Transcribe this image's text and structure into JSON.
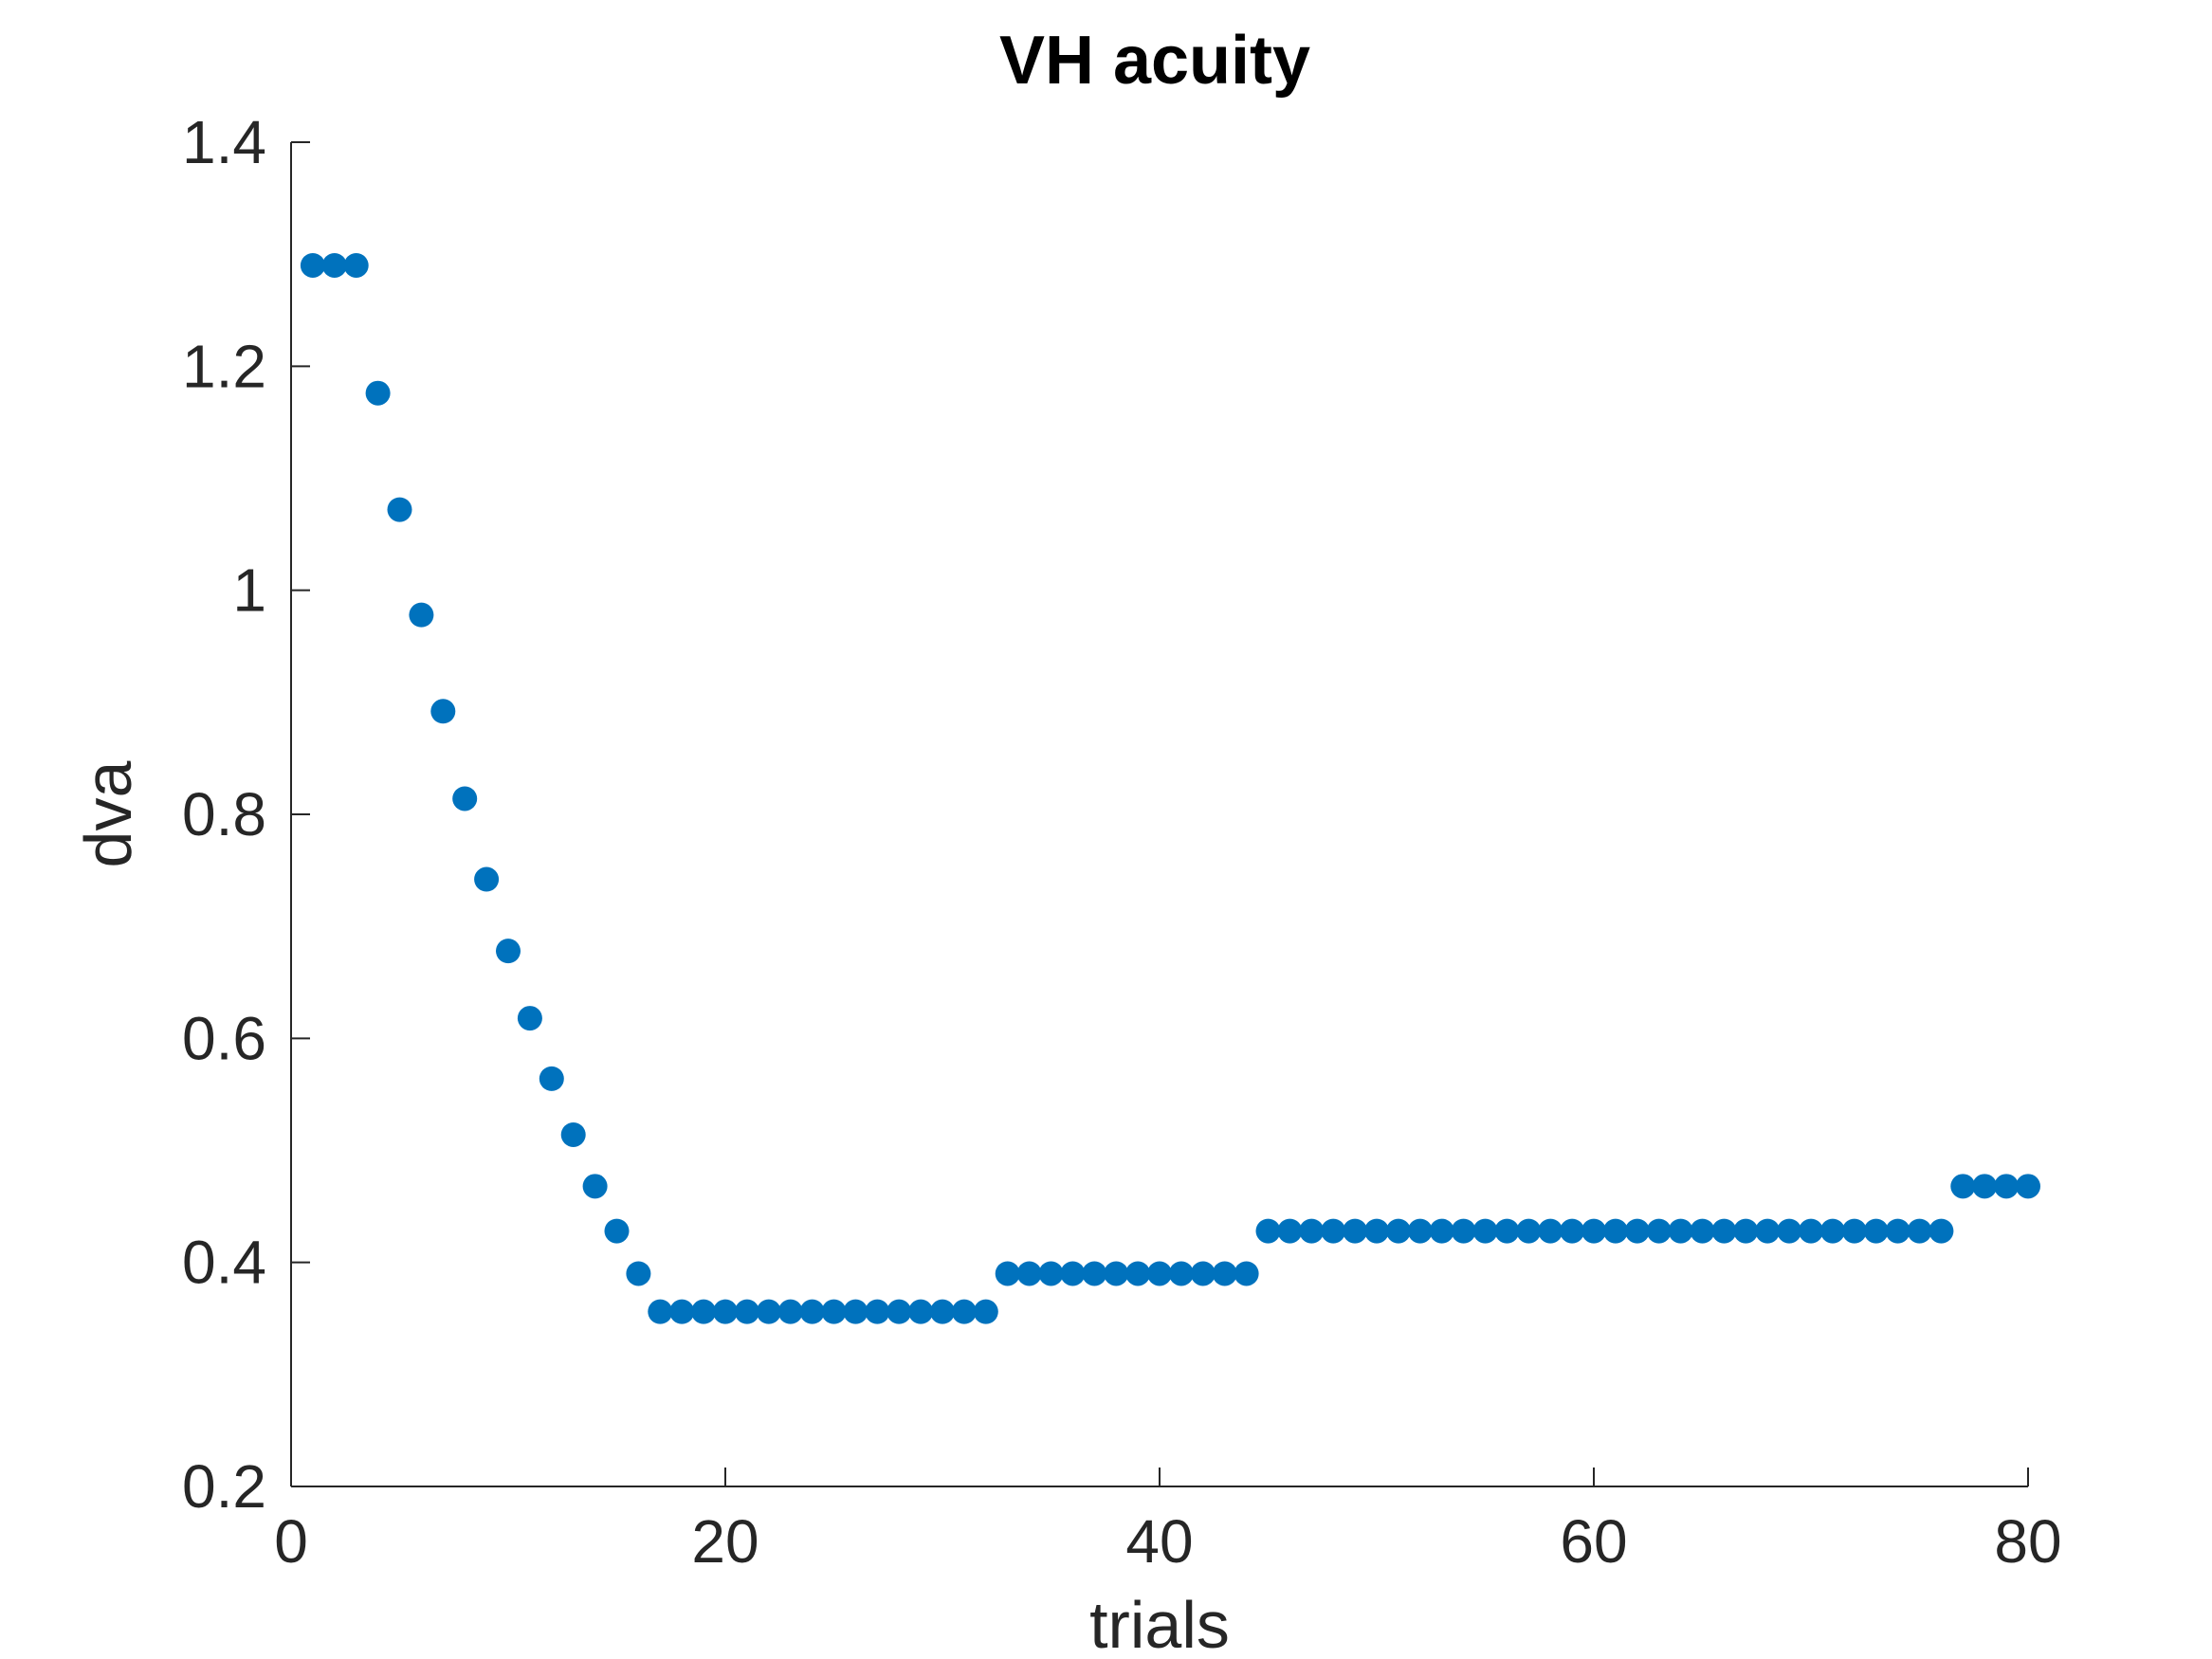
{
  "chart_data": {
    "type": "scatter",
    "title": "VH acuity",
    "xlabel": "trials",
    "ylabel": "dva",
    "xlim": [
      0,
      80
    ],
    "ylim": [
      0.2,
      1.4
    ],
    "xticks": [
      0,
      20,
      40,
      60,
      80
    ],
    "xtick_labels": [
      "0",
      "20",
      "40",
      "60",
      "80"
    ],
    "yticks": [
      0.2,
      0.4,
      0.6,
      0.8,
      1.0,
      1.2,
      1.4
    ],
    "ytick_labels": [
      "0.2",
      "0.4",
      "0.6",
      "0.8",
      "1",
      "1.2",
      "1.4"
    ],
    "grid": false,
    "marker_color": "#0072BD",
    "series": [
      {
        "x": [
          1,
          2,
          3,
          4,
          5,
          6,
          7,
          8,
          9,
          10,
          11,
          12,
          13,
          14,
          15,
          16,
          17,
          18,
          19,
          20,
          21,
          22,
          23,
          24,
          25,
          26,
          27,
          28,
          29,
          30,
          31,
          32,
          33,
          34,
          35,
          36,
          37,
          38,
          39,
          40,
          41,
          42,
          43,
          44,
          45,
          46,
          47,
          48,
          49,
          50,
          51,
          52,
          53,
          54,
          55,
          56,
          57,
          58,
          59,
          60,
          61,
          62,
          63,
          64,
          65,
          66,
          67,
          68,
          69,
          70,
          71,
          72,
          73,
          74,
          75,
          76,
          77,
          78,
          79,
          80
        ],
        "y": [
          1.29,
          1.29,
          1.29,
          1.176,
          1.072,
          0.978,
          0.892,
          0.814,
          0.742,
          0.678,
          0.618,
          0.564,
          0.514,
          0.468,
          0.428,
          0.39,
          0.356,
          0.356,
          0.356,
          0.356,
          0.356,
          0.356,
          0.356,
          0.356,
          0.356,
          0.356,
          0.356,
          0.356,
          0.356,
          0.356,
          0.356,
          0.356,
          0.39,
          0.39,
          0.39,
          0.39,
          0.39,
          0.39,
          0.39,
          0.39,
          0.39,
          0.39,
          0.39,
          0.39,
          0.428,
          0.428,
          0.428,
          0.428,
          0.428,
          0.428,
          0.428,
          0.428,
          0.428,
          0.428,
          0.428,
          0.428,
          0.428,
          0.428,
          0.428,
          0.428,
          0.428,
          0.428,
          0.428,
          0.428,
          0.428,
          0.428,
          0.428,
          0.428,
          0.428,
          0.428,
          0.428,
          0.428,
          0.428,
          0.428,
          0.428,
          0.428,
          0.468,
          0.468,
          0.468,
          0.468
        ]
      }
    ]
  }
}
